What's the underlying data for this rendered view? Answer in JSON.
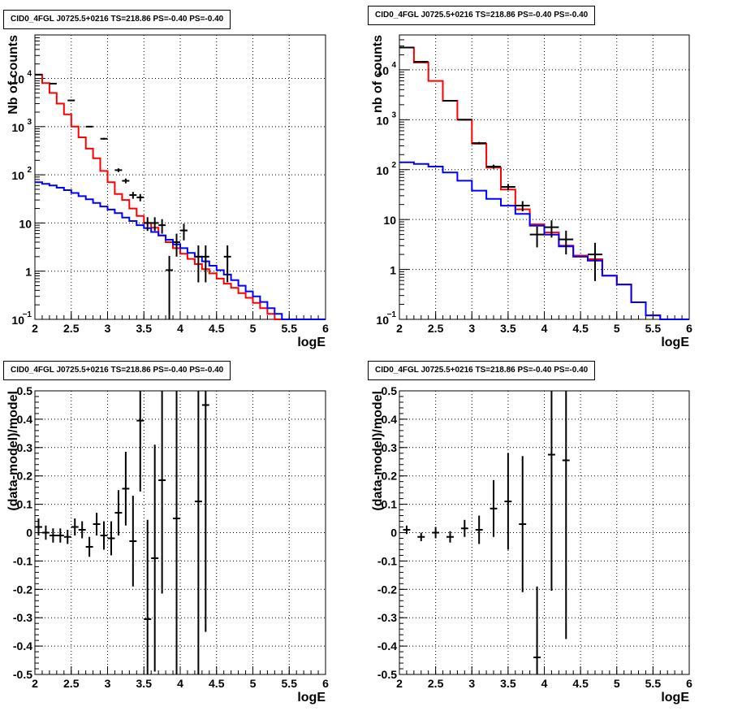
{
  "chart_data": [
    {
      "type": "line",
      "panel": "top-left",
      "title": "CID0_4FGL J0725.5+0216 TS=218.86 PS=-0.40 PS=-0.40",
      "xlabel": "logE",
      "ylabel": "Nb of counts",
      "xlim": [
        2,
        6
      ],
      "ylim": [
        0.1,
        80000
      ],
      "yscale": "log",
      "grid": true,
      "xticks": [
        "2",
        "2.5",
        "3",
        "3.5",
        "4",
        "4.5",
        "5",
        "5.5",
        "6"
      ],
      "yticks": [
        {
          "v": 0.1,
          "label": "10",
          "exp": "−1"
        },
        {
          "v": 1,
          "label": "1",
          "exp": ""
        },
        {
          "v": 10,
          "label": "10",
          "exp": ""
        },
        {
          "v": 100,
          "label": "10",
          "exp": "2"
        },
        {
          "v": 1000,
          "label": "10",
          "exp": "3"
        },
        {
          "v": 10000,
          "label": "10",
          "exp": "4"
        }
      ],
      "bin_edges": [
        2.0,
        2.1,
        2.2,
        2.3,
        2.4,
        2.5,
        2.6,
        2.7,
        2.8,
        2.9,
        3.0,
        3.1,
        3.2,
        3.3,
        3.4,
        3.5,
        3.6,
        3.7,
        3.8,
        3.9,
        4.0,
        4.1,
        4.2,
        4.3,
        4.4,
        4.5,
        4.6,
        4.7,
        4.8,
        4.9,
        5.0,
        5.1,
        5.2,
        5.3,
        5.4,
        5.5,
        5.6,
        5.7,
        5.8,
        5.9,
        6.0
      ],
      "series": [
        {
          "color": "#ff0000",
          "values": [
            12000,
            8000,
            5000,
            3000,
            1800,
            1000,
            600,
            350,
            220,
            120,
            70,
            40,
            30,
            20,
            14,
            10,
            8,
            5.5,
            4,
            3,
            2.3,
            1.8,
            1.4,
            1.1,
            0.9,
            0.7,
            0.55,
            0.45,
            0.35,
            0.28,
            0.22,
            0.17,
            0.13,
            0.1,
            0.1,
            0.1,
            0.1,
            0.1,
            0.1,
            0.1
          ]
        },
        {
          "color": "#0000ff",
          "values": [
            70,
            65,
            60,
            54,
            48,
            42,
            36,
            31,
            26,
            22,
            19,
            16,
            13,
            11,
            9,
            7.8,
            6.5,
            5.5,
            4.5,
            3.6,
            3,
            2.4,
            2,
            1.6,
            1.3,
            1.05,
            0.85,
            0.65,
            0.5,
            0.38,
            0.3,
            0.23,
            0.17,
            0.13,
            0.1,
            0.1,
            0.1,
            0.1,
            0.1,
            0.1
          ]
        }
      ],
      "points": [
        {
          "x": 2.05,
          "y": 12000
        },
        {
          "x": 2.25,
          "y": 7800
        },
        {
          "x": 2.5,
          "y": 3500
        },
        {
          "x": 2.75,
          "y": 1000
        },
        {
          "x": 2.95,
          "y": 560
        },
        {
          "x": 3.15,
          "y": 125
        },
        {
          "x": 3.25,
          "y": 75
        },
        {
          "x": 3.35,
          "y": 38
        },
        {
          "x": 3.45,
          "y": 34
        },
        {
          "x": 3.55,
          "y": 10
        },
        {
          "x": 3.65,
          "y": 10
        },
        {
          "x": 3.75,
          "y": 9
        },
        {
          "x": 3.85,
          "y": 1.05
        },
        {
          "x": 3.95,
          "y": 4
        },
        {
          "x": 4.05,
          "y": 7
        },
        {
          "x": 4.25,
          "y": 2
        },
        {
          "x": 4.35,
          "y": 2
        },
        {
          "x": 4.65,
          "y": 2
        }
      ]
    },
    {
      "type": "line",
      "panel": "top-right",
      "title": "CID0_4FGL J0725.5+0216 TS=218.86 PS=-0.40 PS=-0.40",
      "xlabel": "logE",
      "ylabel": "nb of counts",
      "xlim": [
        2,
        6
      ],
      "ylim": [
        0.1,
        50000
      ],
      "yscale": "log",
      "grid": true,
      "xticks": [
        "2",
        "2.5",
        "3",
        "3.5",
        "4",
        "4.5",
        "5",
        "5.5",
        "6"
      ],
      "yticks": [
        {
          "v": 0.1,
          "label": "10",
          "exp": "−1"
        },
        {
          "v": 1,
          "label": "1",
          "exp": ""
        },
        {
          "v": 10,
          "label": "10",
          "exp": ""
        },
        {
          "v": 100,
          "label": "10",
          "exp": "2"
        },
        {
          "v": 1000,
          "label": "10",
          "exp": "3"
        },
        {
          "v": 10000,
          "label": "10",
          "exp": "4"
        }
      ],
      "bin_edges": [
        2.0,
        2.2,
        2.4,
        2.6,
        2.8,
        3.0,
        3.2,
        3.4,
        3.6,
        3.8,
        4.0,
        4.2,
        4.4,
        4.6,
        4.8,
        5.0,
        5.2,
        5.4,
        5.6,
        5.8,
        6.0
      ],
      "series": [
        {
          "color": "#ff0000",
          "values": [
            28000,
            14000,
            6000,
            2400,
            1000,
            330,
            110,
            40,
            16,
            8,
            5.5,
            3,
            1.9,
            1.6,
            0.75,
            0.5,
            0.22,
            0.12,
            0.1,
            0.1
          ]
        },
        {
          "color": "#0000ff",
          "values": [
            140,
            130,
            115,
            88,
            60,
            38,
            26,
            19,
            13,
            7.5,
            5,
            2.9,
            1.8,
            1.5,
            0.75,
            0.5,
            0.22,
            0.12,
            0.1,
            0.1
          ]
        }
      ],
      "points": [
        {
          "x": 2.1,
          "y": 28000
        },
        {
          "x": 2.3,
          "y": 14500
        },
        {
          "x": 2.7,
          "y": 2400
        },
        {
          "x": 2.9,
          "y": 1000
        },
        {
          "x": 3.1,
          "y": 340
        },
        {
          "x": 3.3,
          "y": 115
        },
        {
          "x": 3.5,
          "y": 45
        },
        {
          "x": 3.7,
          "y": 19
        },
        {
          "x": 3.9,
          "y": 5
        },
        {
          "x": 4.1,
          "y": 7
        },
        {
          "x": 4.3,
          "y": 4
        },
        {
          "x": 4.7,
          "y": 2
        }
      ]
    },
    {
      "type": "scatter",
      "panel": "bottom-left",
      "title": "CID0_4FGL J0725.5+0216 TS=218.86 PS=-0.40 PS=-0.40",
      "xlabel": "logE",
      "ylabel": "(data-model)/model",
      "xlim": [
        2,
        6
      ],
      "ylim": [
        -0.5,
        0.5
      ],
      "grid": true,
      "xticks": [
        "2",
        "2.5",
        "3",
        "3.5",
        "4",
        "4.5",
        "5",
        "5.5",
        "6"
      ],
      "yticks": [
        "-0.5",
        "-0.4",
        "-0.3",
        "-0.2",
        "-0.1",
        "0",
        "0.1",
        "0.2",
        "0.3",
        "0.4",
        "0.5"
      ],
      "points": [
        {
          "x": 2.05,
          "y": 0.02,
          "err": 0.03
        },
        {
          "x": 2.15,
          "y": 0.0,
          "err": 0.025
        },
        {
          "x": 2.25,
          "y": -0.01,
          "err": 0.025
        },
        {
          "x": 2.35,
          "y": -0.01,
          "err": 0.025
        },
        {
          "x": 2.45,
          "y": -0.015,
          "err": 0.025
        },
        {
          "x": 2.55,
          "y": 0.02,
          "err": 0.03
        },
        {
          "x": 2.65,
          "y": 0.01,
          "err": 0.03
        },
        {
          "x": 2.75,
          "y": -0.05,
          "err": 0.035
        },
        {
          "x": 2.85,
          "y": 0.03,
          "err": 0.04
        },
        {
          "x": 2.95,
          "y": -0.01,
          "err": 0.05
        },
        {
          "x": 3.05,
          "y": -0.02,
          "err": 0.06
        },
        {
          "x": 3.15,
          "y": 0.07,
          "err": 0.08
        },
        {
          "x": 3.25,
          "y": 0.155,
          "err": 0.13
        },
        {
          "x": 3.35,
          "y": -0.03,
          "err": 0.16
        },
        {
          "x": 3.45,
          "y": 0.395,
          "err": 0.25
        },
        {
          "x": 3.55,
          "y": -0.305,
          "err": 0.35
        },
        {
          "x": 3.65,
          "y": -0.09,
          "err": 0.4
        },
        {
          "x": 3.75,
          "y": 0.185,
          "err": 0.4
        },
        {
          "x": 3.95,
          "y": 0.05,
          "err": 0.55
        },
        {
          "x": 4.25,
          "y": 0.11,
          "err": 0.8
        },
        {
          "x": 4.35,
          "y": 0.45,
          "err": 0.8
        }
      ]
    },
    {
      "type": "scatter",
      "panel": "bottom-right",
      "title": "CID0_4FGL J0725.5+0216 TS=218.86 PS=-0.40 PS=-0.40",
      "xlabel": "logE",
      "ylabel": "(data-model)/model",
      "xlim": [
        2,
        6
      ],
      "ylim": [
        -0.5,
        0.5
      ],
      "grid": true,
      "xticks": [
        "2",
        "2.5",
        "3",
        "3.5",
        "4",
        "4.5",
        "5",
        "5.5",
        "6"
      ],
      "yticks": [
        "-0.5",
        "-0.4",
        "-0.3",
        "-0.2",
        "-0.1",
        "0",
        "0.1",
        "0.2",
        "0.3",
        "0.4",
        "0.5"
      ],
      "points": [
        {
          "x": 2.1,
          "y": 0.01,
          "err": 0.015
        },
        {
          "x": 2.3,
          "y": -0.015,
          "err": 0.015
        },
        {
          "x": 2.5,
          "y": 0.0,
          "err": 0.02
        },
        {
          "x": 2.7,
          "y": -0.015,
          "err": 0.02
        },
        {
          "x": 2.9,
          "y": 0.015,
          "err": 0.03
        },
        {
          "x": 3.1,
          "y": 0.01,
          "err": 0.05
        },
        {
          "x": 3.3,
          "y": 0.085,
          "err": 0.1
        },
        {
          "x": 3.5,
          "y": 0.11,
          "err": 0.17
        },
        {
          "x": 3.7,
          "y": 0.03,
          "err": 0.24
        },
        {
          "x": 3.9,
          "y": -0.44,
          "err": 0.25
        },
        {
          "x": 4.1,
          "y": 0.275,
          "err": 0.48
        },
        {
          "x": 4.3,
          "y": 0.255,
          "err": 0.63
        }
      ]
    }
  ]
}
